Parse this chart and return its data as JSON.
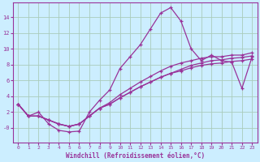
{
  "xlabel": "Windchill (Refroidissement éolien,°C)",
  "bg_color": "#cceeff",
  "grid_color": "#aaccbb",
  "line_color": "#993399",
  "x_ticks": [
    0,
    1,
    2,
    3,
    4,
    5,
    6,
    7,
    8,
    9,
    10,
    11,
    12,
    13,
    14,
    15,
    16,
    17,
    18,
    19,
    20,
    21,
    22,
    23
  ],
  "y_ticks": [
    0,
    2,
    4,
    6,
    8,
    10,
    12,
    14
  ],
  "y_tick_labels": [
    "-0",
    "2",
    "4",
    "6",
    "8",
    "10",
    "12",
    "14"
  ],
  "ylim": [
    -1.8,
    15.8
  ],
  "xlim": [
    -0.5,
    23.5
  ],
  "series": [
    [
      3.0,
      1.5,
      2.0,
      0.5,
      -0.3,
      -0.5,
      -0.4,
      2.0,
      3.5,
      4.8,
      7.5,
      9.0,
      10.5,
      12.5,
      14.5,
      15.2,
      13.5,
      10.0,
      8.5,
      9.2,
      8.5,
      8.3,
      5.0,
      9.0
    ],
    [
      3.0,
      1.5,
      1.5,
      1.0,
      0.5,
      0.2,
      0.5,
      1.5,
      2.5,
      3.2,
      4.2,
      5.0,
      5.8,
      6.5,
      7.2,
      7.8,
      8.2,
      8.5,
      8.8,
      9.0,
      9.0,
      9.2,
      9.2,
      9.5
    ],
    [
      3.0,
      1.5,
      1.5,
      1.0,
      0.5,
      0.2,
      0.5,
      1.5,
      2.5,
      3.0,
      3.8,
      4.5,
      5.2,
      5.8,
      6.4,
      6.9,
      7.2,
      7.6,
      7.9,
      8.1,
      8.2,
      8.4,
      8.5,
      8.7
    ],
    [
      3.0,
      1.5,
      1.5,
      1.0,
      0.5,
      0.2,
      0.5,
      1.5,
      2.5,
      3.0,
      3.8,
      4.5,
      5.2,
      5.8,
      6.4,
      6.9,
      7.4,
      7.9,
      8.2,
      8.5,
      8.6,
      8.8,
      8.9,
      9.1
    ]
  ],
  "xlabel_fontsize": 5.5,
  "tick_fontsize": 5.0,
  "tick_fontsize_x": 4.5
}
